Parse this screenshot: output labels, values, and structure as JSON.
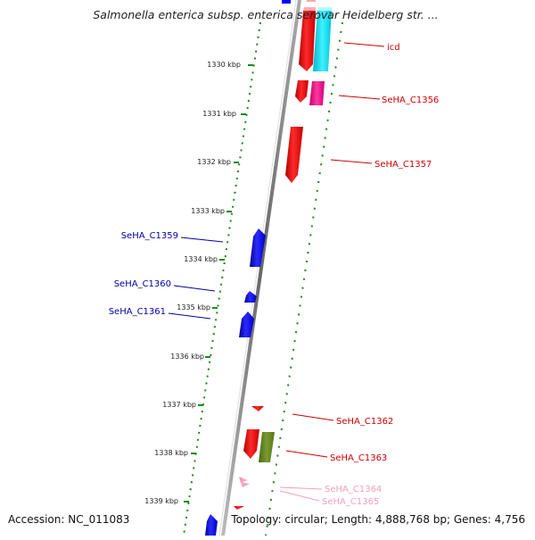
{
  "title": "Salmonella enterica subsp. enterica serovar Heidelberg str. ...",
  "footer": {
    "accession": "Accession: NC_011083",
    "summary": "Topology: circular; Length: 4,888,768 bp; Genes: 4,756"
  },
  "colors": {
    "backbone": "#8a8a8a",
    "tick_dots": "#1a8a1a",
    "forward_gene": "#ff0000",
    "reverse_gene": "#0000ff",
    "label_forward": "#cc0000",
    "label_reverse": "#0000aa",
    "label_faint": "#f0a0c0"
  },
  "scale_ticks": [
    {
      "label": "1330 kbp"
    },
    {
      "label": "1331 kbp"
    },
    {
      "label": "1332 kbp"
    },
    {
      "label": "1333 kbp"
    },
    {
      "label": "1334 kbp"
    },
    {
      "label": "1335 kbp"
    },
    {
      "label": "1336 kbp"
    },
    {
      "label": "1337 kbp"
    },
    {
      "label": "1338 kbp"
    },
    {
      "label": "1339 kbp"
    }
  ],
  "gene_labels": [
    {
      "name": "icd",
      "strand": "forward"
    },
    {
      "name": "SeHA_C1356",
      "strand": "forward"
    },
    {
      "name": "SeHA_C1357",
      "strand": "forward"
    },
    {
      "name": "SeHA_C1359",
      "strand": "reverse"
    },
    {
      "name": "SeHA_C1360",
      "strand": "reverse"
    },
    {
      "name": "SeHA_C1361",
      "strand": "reverse"
    },
    {
      "name": "SeHA_C1362",
      "strand": "forward"
    },
    {
      "name": "SeHA_C1363",
      "strand": "forward"
    },
    {
      "name": "SeHA_C1364",
      "strand": "faint"
    },
    {
      "name": "SeHA_C1365",
      "strand": "faint"
    }
  ]
}
